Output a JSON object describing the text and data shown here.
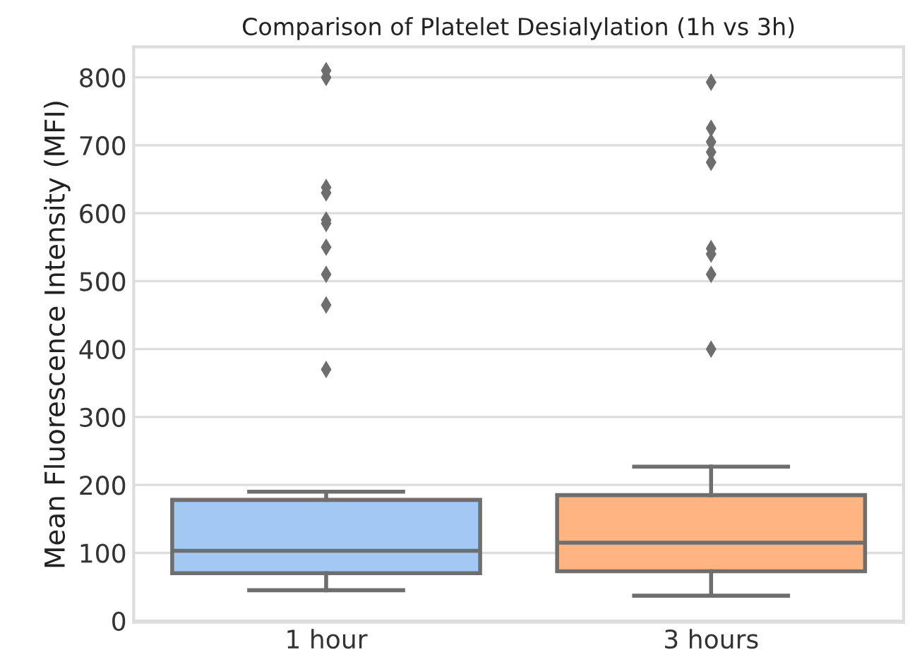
{
  "chart_data": {
    "type": "box",
    "title": "Comparison of Platelet Desialylation (1h vs 3h)",
    "ylabel": "Mean Fluorescence Intensity (MFI)",
    "categories": [
      "1 hour",
      "3 hours"
    ],
    "colors": [
      "#a1c9f4",
      "#ffb482"
    ],
    "boxes": [
      {
        "low": 45,
        "q1": 70,
        "median": 103,
        "q3": 178,
        "high": 190,
        "outliers": [
          810,
          800,
          638,
          630,
          590,
          585,
          550,
          510,
          465,
          370
        ]
      },
      {
        "low": 37,
        "q1": 73,
        "median": 115,
        "q3": 185,
        "high": 227,
        "outliers": [
          793,
          725,
          705,
          690,
          675,
          548,
          540,
          510,
          400
        ]
      }
    ],
    "ylim": [
      -2,
      845
    ],
    "yticks": [
      0,
      100,
      200,
      300,
      400,
      500,
      600,
      700,
      800
    ],
    "grid": "y",
    "marker": "diamond"
  }
}
